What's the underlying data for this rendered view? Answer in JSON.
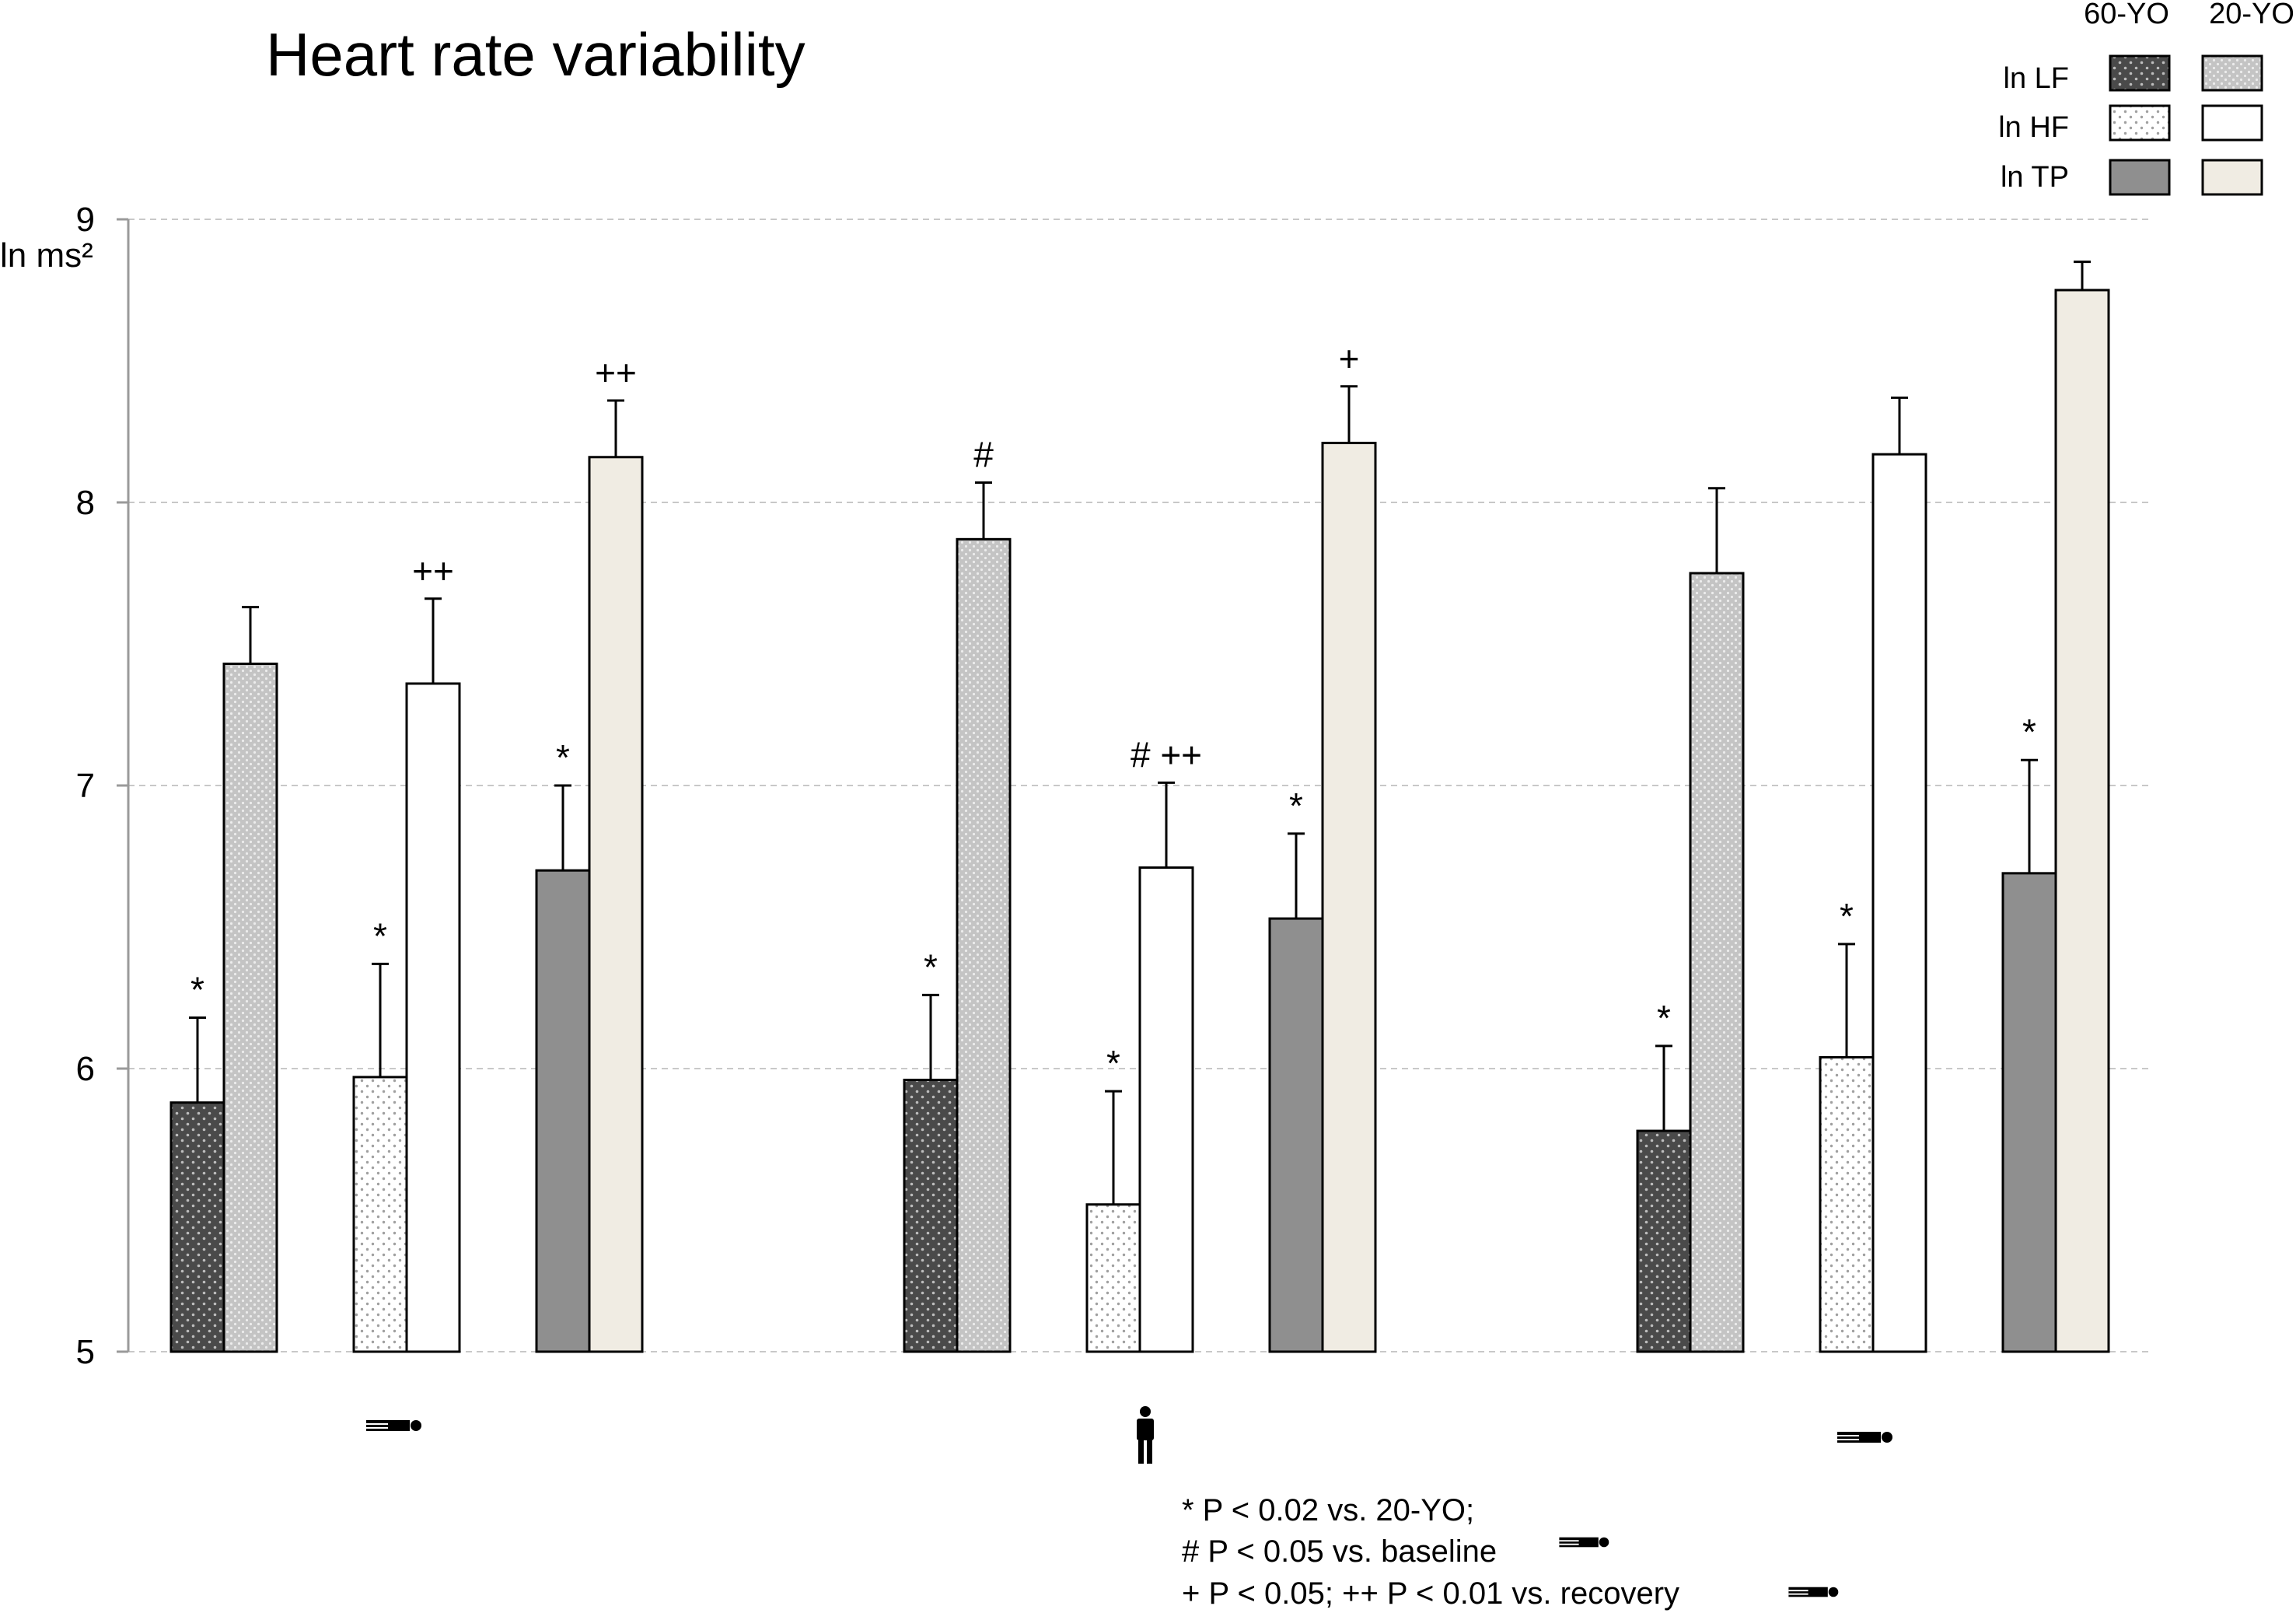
{
  "chart_data": {
    "type": "bar",
    "title": "Heart rate variability",
    "ylabel": "ln ms²",
    "ylim": [
      5,
      9
    ],
    "yticks": [
      "5",
      "6",
      "7",
      "8",
      "9"
    ],
    "grid": true,
    "legend_placement": "top-right",
    "legend": {
      "col_headers": [
        "60-YO",
        "20-YO"
      ],
      "rows": [
        "ln LF",
        "ln HF",
        "ln TP"
      ]
    },
    "conditions": [
      {
        "icon": "lying-person-icon",
        "condition": "baseline"
      },
      {
        "icon": "standing-person-icon",
        "condition": "standing"
      },
      {
        "icon": "lying-person-icon",
        "condition": "recovery"
      }
    ],
    "bars": [
      {
        "cond": 0,
        "measure": "ln LF",
        "group": "60-YO",
        "value": 5.88,
        "err": 0.3,
        "mark": "*"
      },
      {
        "cond": 0,
        "measure": "ln LF",
        "group": "20-YO",
        "value": 7.43,
        "err": 0.2,
        "mark": ""
      },
      {
        "cond": 0,
        "measure": "ln HF",
        "group": "60-YO",
        "value": 5.97,
        "err": 0.4,
        "mark": "*"
      },
      {
        "cond": 0,
        "measure": "ln HF",
        "group": "20-YO",
        "value": 7.36,
        "err": 0.3,
        "mark": "++"
      },
      {
        "cond": 0,
        "measure": "ln TP",
        "group": "60-YO",
        "value": 6.7,
        "err": 0.3,
        "mark": "*"
      },
      {
        "cond": 0,
        "measure": "ln TP",
        "group": "20-YO",
        "value": 8.16,
        "err": 0.2,
        "mark": "++"
      },
      {
        "cond": 1,
        "measure": "ln LF",
        "group": "60-YO",
        "value": 5.96,
        "err": 0.3,
        "mark": "*"
      },
      {
        "cond": 1,
        "measure": "ln LF",
        "group": "20-YO",
        "value": 7.87,
        "err": 0.2,
        "mark": "#"
      },
      {
        "cond": 1,
        "measure": "ln HF",
        "group": "60-YO",
        "value": 5.52,
        "err": 0.4,
        "mark": "*"
      },
      {
        "cond": 1,
        "measure": "ln HF",
        "group": "20-YO",
        "value": 6.71,
        "err": 0.3,
        "mark": "# ++"
      },
      {
        "cond": 1,
        "measure": "ln TP",
        "group": "60-YO",
        "value": 6.53,
        "err": 0.3,
        "mark": "*"
      },
      {
        "cond": 1,
        "measure": "ln TP",
        "group": "20-YO",
        "value": 8.21,
        "err": 0.2,
        "mark": "+"
      },
      {
        "cond": 2,
        "measure": "ln LF",
        "group": "60-YO",
        "value": 5.78,
        "err": 0.3,
        "mark": "*"
      },
      {
        "cond": 2,
        "measure": "ln LF",
        "group": "20-YO",
        "value": 7.75,
        "err": 0.3,
        "mark": ""
      },
      {
        "cond": 2,
        "measure": "ln HF",
        "group": "60-YO",
        "value": 6.04,
        "err": 0.4,
        "mark": "*"
      },
      {
        "cond": 2,
        "measure": "ln HF",
        "group": "20-YO",
        "value": 8.17,
        "err": 0.2,
        "mark": ""
      },
      {
        "cond": 2,
        "measure": "ln TP",
        "group": "60-YO",
        "value": 6.69,
        "err": 0.4,
        "mark": "*"
      },
      {
        "cond": 2,
        "measure": "ln TP",
        "group": "20-YO",
        "value": 8.75,
        "err": 0.1,
        "mark": ""
      }
    ],
    "footnotes": [
      "* P < 0.02 vs. 20-YO;",
      "# P < 0.05 vs. baseline",
      "+ P <  0.05; ++ P < 0.01 vs. recovery"
    ],
    "footnote_icons": [
      "",
      "lying-person-icon",
      "lying-person-icon"
    ]
  }
}
